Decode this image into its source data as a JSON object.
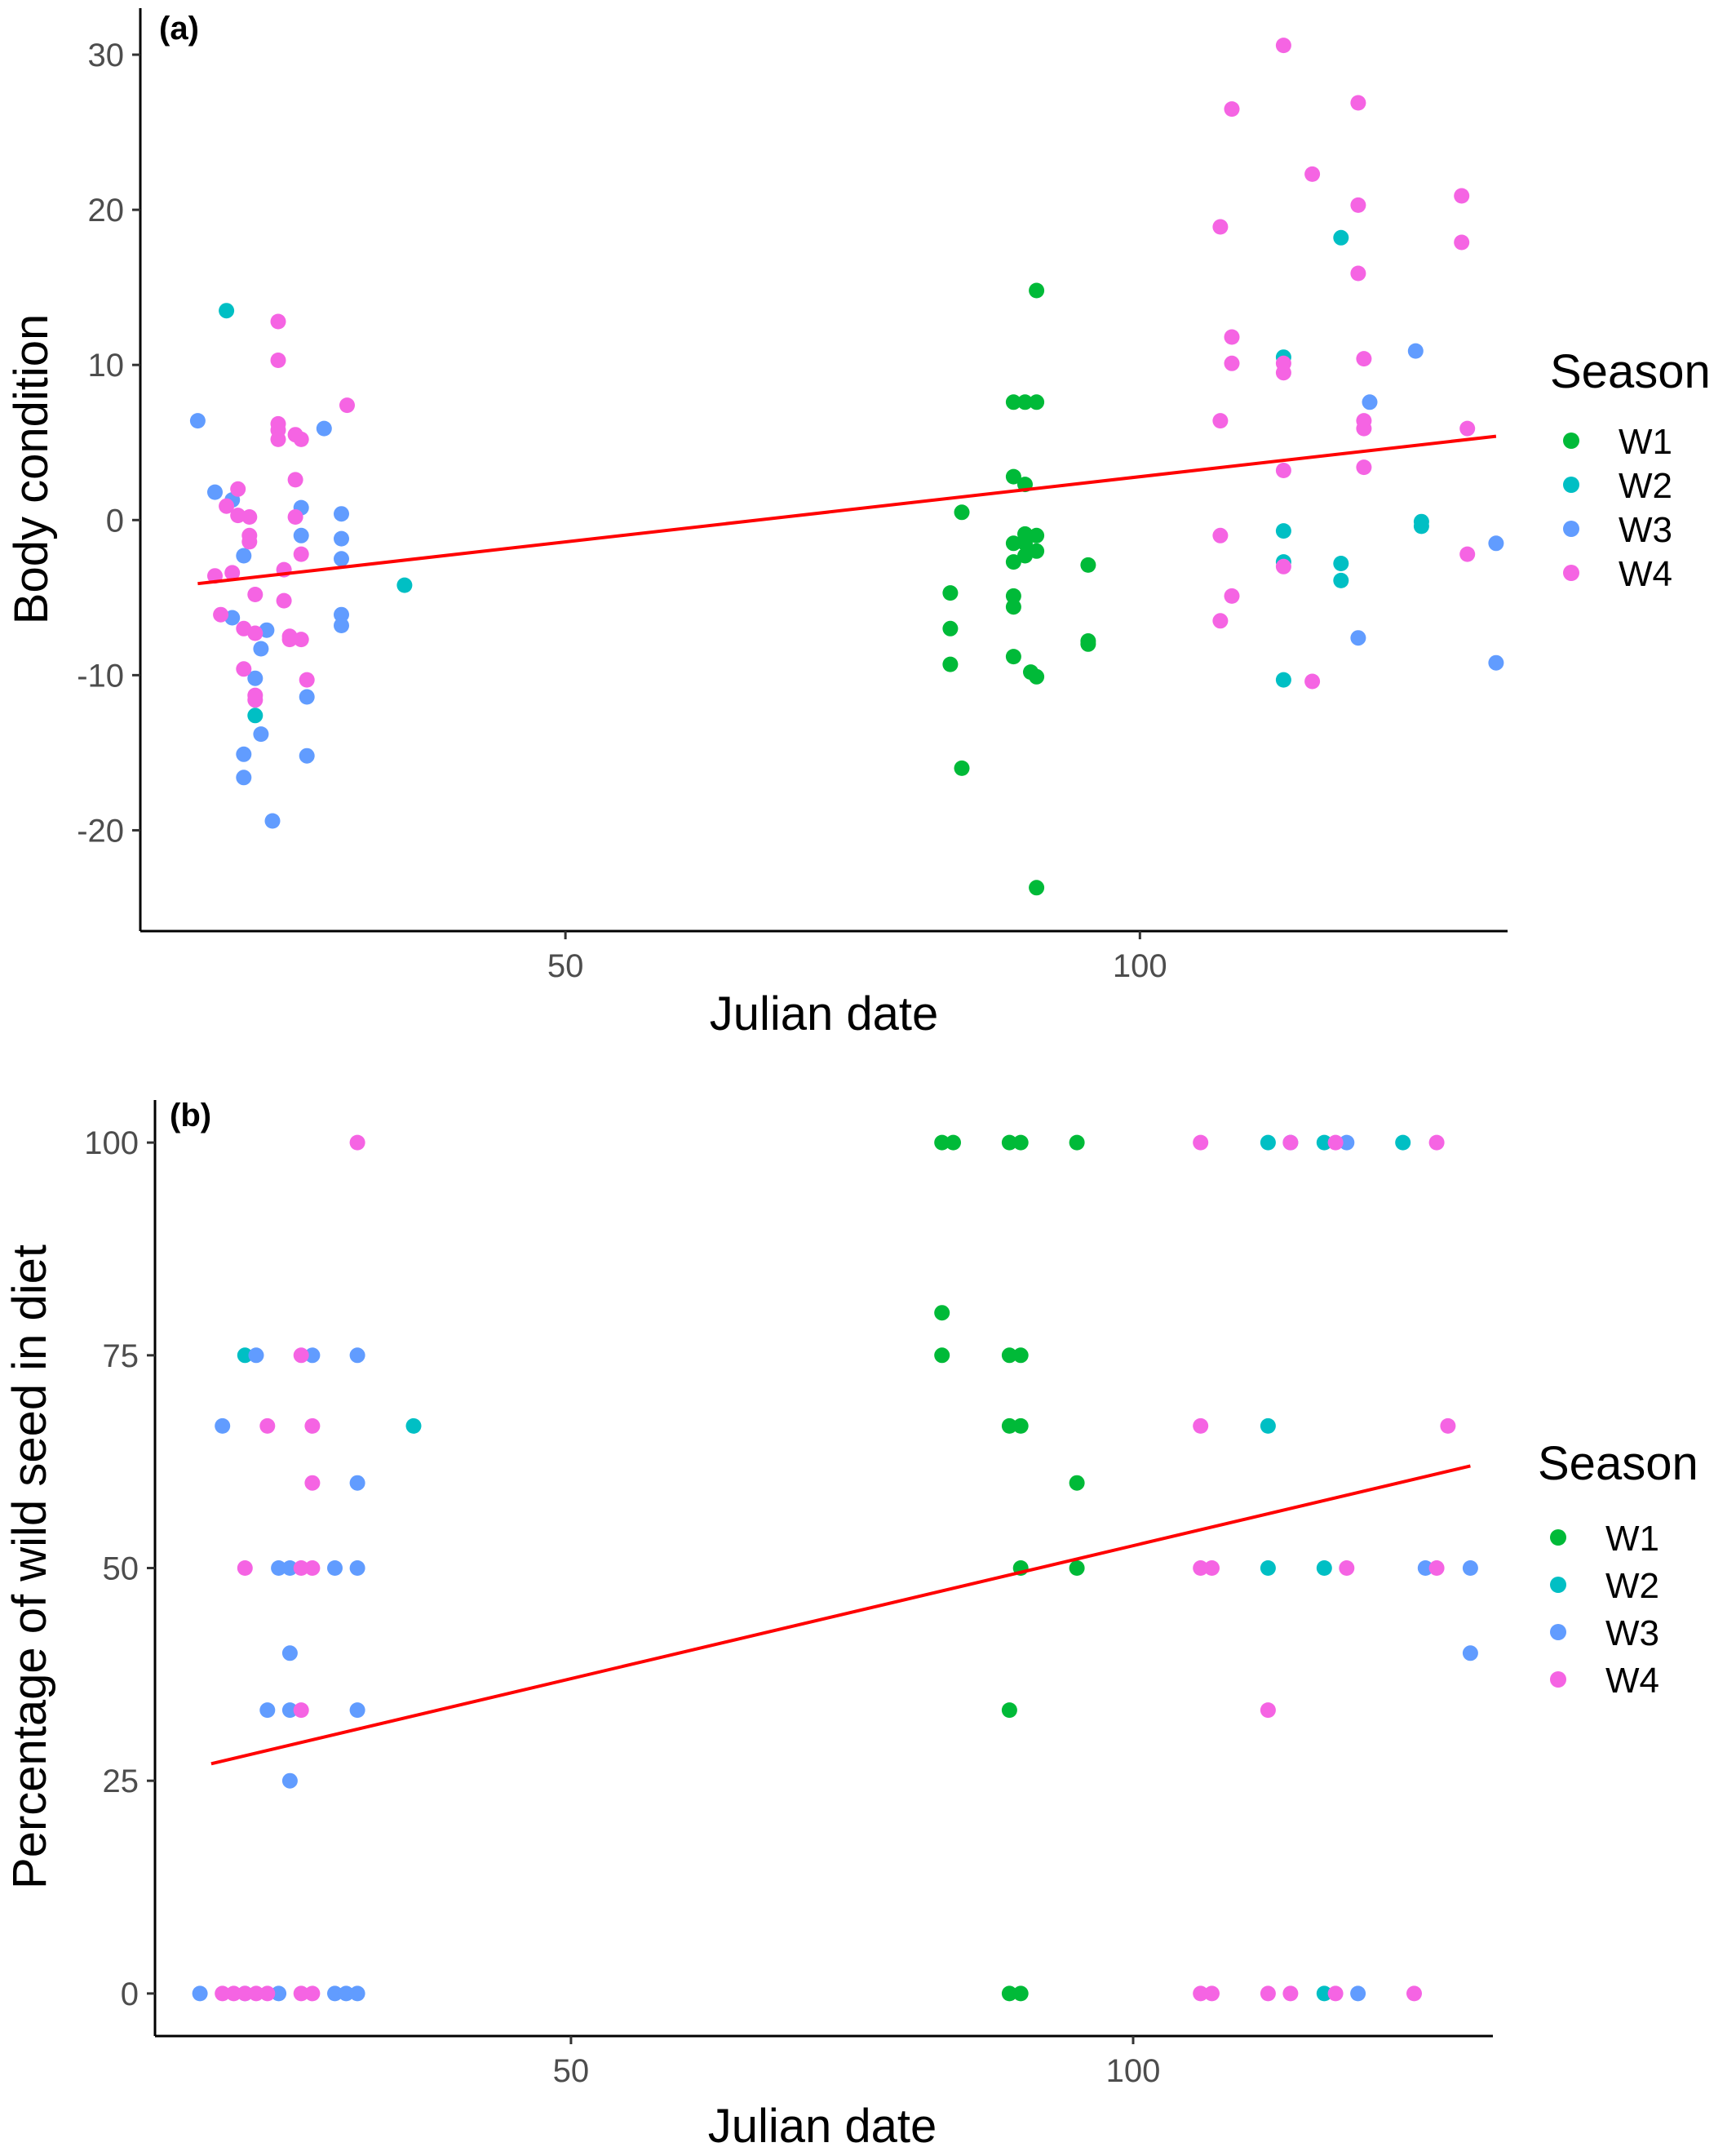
{
  "colors": {
    "W1": "#00BA38",
    "W2": "#00BFC4",
    "W3": "#619CFF",
    "W4": "#F564E3",
    "trend": "#FF0000",
    "axis": "#000000"
  },
  "chart_data": [
    {
      "type": "scatter",
      "panel_label": "(a)",
      "xlabel": "Julian date",
      "ylabel": "Body condition",
      "xlim": [
        13,
        132
      ],
      "ylim": [
        -26.5,
        33
      ],
      "x_ticks": [
        50,
        100
      ],
      "y_ticks": [
        -20,
        -10,
        0,
        10,
        20,
        30
      ],
      "grid": false,
      "legend": {
        "title": "Season",
        "position": "right",
        "entries": [
          "W1",
          "W2",
          "W3",
          "W4"
        ]
      },
      "trend_line": {
        "x": [
          18,
          131
        ],
        "y": [
          -4.1,
          5.4
        ]
      },
      "series": [
        {
          "name": "W1",
          "points": [
            [
              83.5,
              -4.7
            ],
            [
              83.5,
              -7.0
            ],
            [
              83.5,
              -9.3
            ],
            [
              84.5,
              0.5
            ],
            [
              84.5,
              -16.0
            ],
            [
              89,
              7.6
            ],
            [
              90,
              7.6
            ],
            [
              91,
              7.6
            ],
            [
              89,
              2.8
            ],
            [
              90,
              2.3
            ],
            [
              90,
              -0.9
            ],
            [
              91,
              -1.0
            ],
            [
              89,
              -1.5
            ],
            [
              90,
              -1.5
            ],
            [
              91,
              -2.0
            ],
            [
              89,
              -2.7
            ],
            [
              90,
              -2.3
            ],
            [
              89,
              -4.9
            ],
            [
              89,
              -5.6
            ],
            [
              89,
              -8.8
            ],
            [
              90.5,
              -9.8
            ],
            [
              91,
              -10.1
            ],
            [
              91,
              14.8
            ],
            [
              91,
              -23.7
            ],
            [
              95.5,
              -2.9
            ],
            [
              95.5,
              -7.8
            ],
            [
              95.5,
              -8.0
            ]
          ]
        },
        {
          "name": "W2",
          "points": [
            [
              20.5,
              13.5
            ],
            [
              23,
              -12.6
            ],
            [
              36,
              -4.2
            ],
            [
              112.5,
              10.5
            ],
            [
              112.5,
              -0.7
            ],
            [
              112.5,
              -2.7
            ],
            [
              112.5,
              -10.3
            ],
            [
              117.5,
              18.2
            ],
            [
              117.5,
              -2.8
            ],
            [
              117.5,
              -3.9
            ],
            [
              124.5,
              -0.1
            ],
            [
              124.5,
              -0.4
            ]
          ]
        },
        {
          "name": "W3",
          "points": [
            [
              18,
              6.4
            ],
            [
              19.5,
              1.8
            ],
            [
              21,
              1.3
            ],
            [
              22,
              -2.3
            ],
            [
              21,
              -6.3
            ],
            [
              24,
              -7.1
            ],
            [
              23.5,
              -8.3
            ],
            [
              23,
              -10.2
            ],
            [
              22,
              -15.1
            ],
            [
              22,
              -16.6
            ],
            [
              23.5,
              -13.8
            ],
            [
              24.5,
              -19.4
            ],
            [
              27,
              0.8
            ],
            [
              27,
              -1.0
            ],
            [
              27.5,
              -11.4
            ],
            [
              27.5,
              -15.2
            ],
            [
              29,
              5.9
            ],
            [
              30.5,
              0.4
            ],
            [
              30.5,
              -1.2
            ],
            [
              30.5,
              -2.5
            ],
            [
              30.5,
              -6.1
            ],
            [
              30.5,
              -6.8
            ],
            [
              119,
              -7.6
            ],
            [
              120,
              7.6
            ],
            [
              124,
              10.9
            ],
            [
              131,
              -1.5
            ],
            [
              131,
              -9.2
            ]
          ]
        },
        {
          "name": "W4",
          "points": [
            [
              19.5,
              -3.6
            ],
            [
              20,
              -6.1
            ],
            [
              20.5,
              0.9
            ],
            [
              21,
              -3.4
            ],
            [
              21.5,
              0.3
            ],
            [
              21.5,
              2.0
            ],
            [
              22,
              -7.0
            ],
            [
              22,
              -9.6
            ],
            [
              22.5,
              -1.0
            ],
            [
              22.5,
              -1.4
            ],
            [
              22.5,
              0.2
            ],
            [
              23,
              -4.8
            ],
            [
              23,
              -11.3
            ],
            [
              23,
              -11.6
            ],
            [
              23,
              -7.3
            ],
            [
              25,
              12.8
            ],
            [
              25,
              10.3
            ],
            [
              25,
              6.2
            ],
            [
              25,
              5.8
            ],
            [
              25,
              5.2
            ],
            [
              25.5,
              -3.2
            ],
            [
              25.5,
              -5.2
            ],
            [
              26,
              -7.5
            ],
            [
              26,
              -7.7
            ],
            [
              26.5,
              0.2
            ],
            [
              26.5,
              2.6
            ],
            [
              26.5,
              5.5
            ],
            [
              27,
              5.2
            ],
            [
              27,
              -2.2
            ],
            [
              27,
              -7.7
            ],
            [
              27.5,
              -10.3
            ],
            [
              31,
              7.4
            ],
            [
              107,
              18.9
            ],
            [
              107,
              6.4
            ],
            [
              107,
              -1.0
            ],
            [
              107,
              -6.5
            ],
            [
              108,
              26.5
            ],
            [
              108,
              11.8
            ],
            [
              108,
              10.1
            ],
            [
              108,
              -4.9
            ],
            [
              112.5,
              30.6
            ],
            [
              112.5,
              10.1
            ],
            [
              112.5,
              9.5
            ],
            [
              112.5,
              3.2
            ],
            [
              112.5,
              -3.0
            ],
            [
              115,
              22.3
            ],
            [
              115,
              -10.4
            ],
            [
              119,
              26.9
            ],
            [
              119,
              20.3
            ],
            [
              119,
              15.9
            ],
            [
              119.5,
              10.4
            ],
            [
              119.5,
              6.4
            ],
            [
              119.5,
              5.9
            ],
            [
              119.5,
              3.4
            ],
            [
              128,
              20.9
            ],
            [
              128,
              17.9
            ],
            [
              128.5,
              5.9
            ],
            [
              128.5,
              -2.2
            ]
          ]
        }
      ]
    },
    {
      "type": "scatter",
      "panel_label": "(b)",
      "xlabel": "Julian date",
      "ylabel": "Percentage of wild seed in diet",
      "xlim": [
        13,
        132
      ],
      "ylim": [
        -5,
        105
      ],
      "x_ticks": [
        50,
        100
      ],
      "y_ticks": [
        0,
        25,
        50,
        75,
        100
      ],
      "grid": false,
      "legend": {
        "title": "Season",
        "position": "right",
        "entries": [
          "W1",
          "W2",
          "W3",
          "W4"
        ]
      },
      "trend_line": {
        "x": [
          18,
          130
        ],
        "y": [
          27,
          62
        ]
      },
      "series": [
        {
          "name": "W1",
          "points": [
            [
              83,
              100
            ],
            [
              84,
              100
            ],
            [
              89,
              100
            ],
            [
              90,
              100
            ],
            [
              95,
              100
            ],
            [
              83,
              80
            ],
            [
              83,
              75
            ],
            [
              89,
              75
            ],
            [
              90,
              75
            ],
            [
              89,
              66.7
            ],
            [
              90,
              66.7
            ],
            [
              95,
              60
            ],
            [
              90,
              50
            ],
            [
              95,
              50
            ],
            [
              89,
              33.3
            ],
            [
              89,
              0
            ],
            [
              90,
              0
            ]
          ]
        },
        {
          "name": "W2",
          "points": [
            [
              21,
              75
            ],
            [
              36,
              66.7
            ],
            [
              112,
              100
            ],
            [
              117,
              100
            ],
            [
              124,
              100
            ],
            [
              112,
              66.7
            ],
            [
              112,
              50
            ],
            [
              117,
              50
            ],
            [
              117,
              0
            ]
          ]
        },
        {
          "name": "W3",
          "points": [
            [
              19,
              66.7
            ],
            [
              22,
              75
            ],
            [
              24,
              50
            ],
            [
              25,
              50
            ],
            [
              25,
              40
            ],
            [
              23,
              33.3
            ],
            [
              25,
              33.3
            ],
            [
              25,
              25
            ],
            [
              27,
              75
            ],
            [
              29,
              50
            ],
            [
              31,
              75
            ],
            [
              31,
              60
            ],
            [
              31,
              50
            ],
            [
              31,
              33.3
            ],
            [
              17,
              0
            ],
            [
              21,
              0
            ],
            [
              24,
              0
            ],
            [
              29,
              0
            ],
            [
              30,
              0
            ],
            [
              31,
              0
            ],
            [
              114,
              100
            ],
            [
              119,
              100
            ],
            [
              126,
              50
            ],
            [
              130,
              50
            ],
            [
              130,
              40
            ],
            [
              120,
              0
            ]
          ]
        },
        {
          "name": "W4",
          "points": [
            [
              31,
              100
            ],
            [
              19,
              0
            ],
            [
              20,
              0
            ],
            [
              21,
              0
            ],
            [
              22,
              0
            ],
            [
              23,
              0
            ],
            [
              26,
              0
            ],
            [
              27,
              0
            ],
            [
              21,
              50
            ],
            [
              23,
              66.7
            ],
            [
              26,
              75
            ],
            [
              27,
              66.7
            ],
            [
              27,
              60
            ],
            [
              26,
              50
            ],
            [
              27,
              50
            ],
            [
              26,
              33.3
            ],
            [
              106,
              100
            ],
            [
              114,
              100
            ],
            [
              118,
              100
            ],
            [
              127,
              100
            ],
            [
              106,
              66.7
            ],
            [
              106,
              50
            ],
            [
              107,
              50
            ],
            [
              112,
              33.3
            ],
            [
              119,
              50
            ],
            [
              127,
              50
            ],
            [
              128,
              66.7
            ],
            [
              106,
              0
            ],
            [
              107,
              0
            ],
            [
              112,
              0
            ],
            [
              114,
              0
            ],
            [
              118,
              0
            ],
            [
              125,
              0
            ]
          ]
        }
      ]
    }
  ]
}
